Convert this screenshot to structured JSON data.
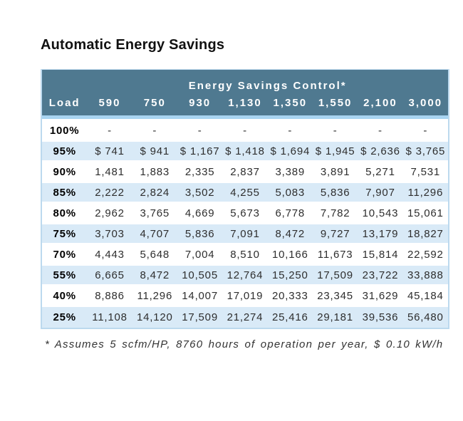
{
  "page": {
    "title": "Automatic Energy Savings"
  },
  "table": {
    "group_header": "Energy Savings Control*",
    "columns": [
      "Load",
      "590",
      "750",
      "930",
      "1,130",
      "1,350",
      "1,550",
      "2,100",
      "3,000"
    ]
  },
  "footnote": "* Assumes 5 scfm/HP, 8760 hours of operation per year, $ 0.10 kW/h",
  "colors": {
    "header-bg": "#4F7990",
    "strip": "#A9D4F1",
    "row-alt": "#D9EAF7",
    "table-border": "#BCD9EE",
    "title-color": "#111111",
    "body-text": "#2E2E2E"
  },
  "chart_data": {
    "type": "table",
    "title": "Automatic Energy Savings",
    "group_header": "Energy Savings Control*",
    "columns": [
      "Load",
      "590",
      "750",
      "930",
      "1,130",
      "1,350",
      "1,550",
      "2,100",
      "3,000"
    ],
    "rows": [
      {
        "load": "100%",
        "values": [
          "-",
          "-",
          "-",
          "-",
          "-",
          "-",
          "-",
          "-"
        ]
      },
      {
        "load": "95%",
        "values": [
          "$ 741",
          "$ 941",
          "$ 1,167",
          "$ 1,418",
          "$ 1,694",
          "$ 1,945",
          "$ 2,636",
          "$ 3,765"
        ]
      },
      {
        "load": "90%",
        "values": [
          "1,481",
          "1,883",
          "2,335",
          "2,837",
          "3,389",
          "3,891",
          "5,271",
          "7,531"
        ]
      },
      {
        "load": "85%",
        "values": [
          "2,222",
          "2,824",
          "3,502",
          "4,255",
          "5,083",
          "5,836",
          "7,907",
          "11,296"
        ]
      },
      {
        "load": "80%",
        "values": [
          "2,962",
          "3,765",
          "4,669",
          "5,673",
          "6,778",
          "7,782",
          "10,543",
          "15,061"
        ]
      },
      {
        "load": "75%",
        "values": [
          "3,703",
          "4,707",
          "5,836",
          "7,091",
          "8,472",
          "9,727",
          "13,179",
          "18,827"
        ]
      },
      {
        "load": "70%",
        "values": [
          "4,443",
          "5,648",
          "7,004",
          "8,510",
          "10,166",
          "11,673",
          "15,814",
          "22,592"
        ]
      },
      {
        "load": "55%",
        "values": [
          "6,665",
          "8,472",
          "10,505",
          "12,764",
          "15,250",
          "17,509",
          "23,722",
          "33,888"
        ]
      },
      {
        "load": "40%",
        "values": [
          "8,886",
          "11,296",
          "14,007",
          "17,019",
          "20,333",
          "23,345",
          "31,629",
          "45,184"
        ]
      },
      {
        "load": "25%",
        "values": [
          "11,108",
          "14,120",
          "17,509",
          "21,274",
          "25,416",
          "29,181",
          "39,536",
          "56,480"
        ]
      }
    ],
    "footnote": "* Assumes 5 scfm/HP, 8760 hours of operation per year, $ 0.10 kW/h"
  }
}
